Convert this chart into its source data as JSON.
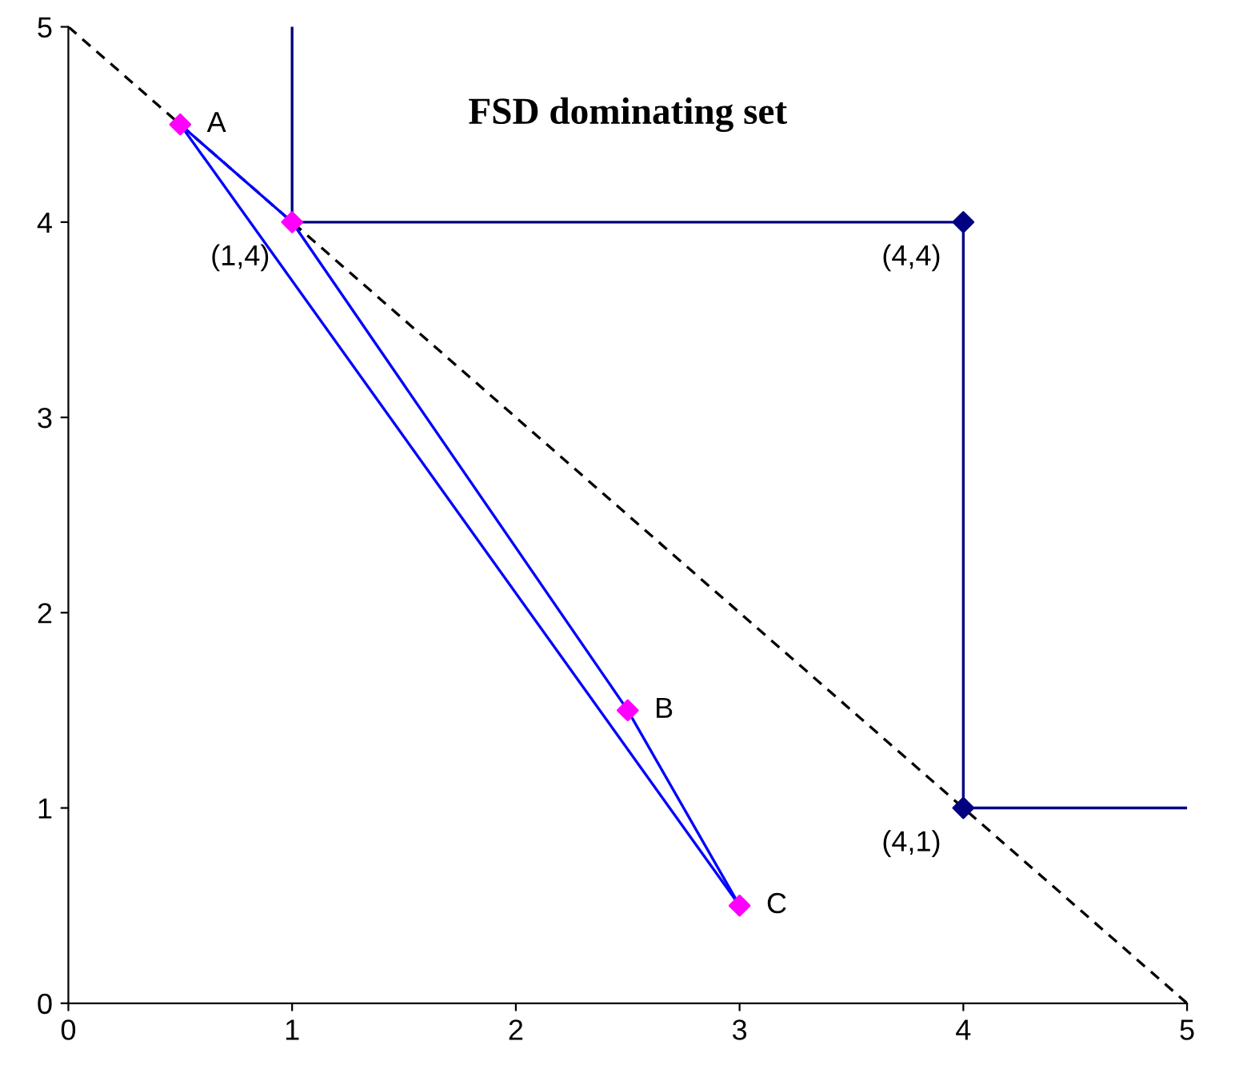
{
  "chart_data": {
    "type": "line",
    "title": "FSD dominating set",
    "xlim": [
      0,
      5
    ],
    "ylim": [
      0,
      5
    ],
    "xticks": [
      0,
      1,
      2,
      3,
      4,
      5
    ],
    "yticks": [
      0,
      1,
      2,
      3,
      4,
      5
    ],
    "grid": false,
    "legend": false,
    "series": [
      {
        "x": [
          0,
          5
        ],
        "values": [
          5,
          0
        ],
        "color": "#000000",
        "line_style": "dashed",
        "marker": "none"
      },
      {
        "x": [
          1,
          1,
          4,
          4,
          5
        ],
        "values": [
          5,
          4,
          4,
          1,
          1
        ],
        "color": "#000080",
        "line_style": "solid",
        "marker": "none"
      },
      {
        "type": "scatter",
        "x": [
          4,
          4
        ],
        "values": [
          4,
          1
        ],
        "color": "#000080",
        "marker": "diamond"
      },
      {
        "x": [
          0.5,
          1,
          2.5,
          3
        ],
        "values": [
          4.5,
          4,
          1.5,
          0.5
        ],
        "color": "#0000ff",
        "line_style": "solid",
        "marker": "none"
      },
      {
        "x": [
          0.5,
          3
        ],
        "values": [
          4.5,
          0.5
        ],
        "color": "#0000ff",
        "line_style": "solid",
        "marker": "none"
      },
      {
        "type": "scatter",
        "x": [
          0.5,
          1,
          2.5,
          3
        ],
        "values": [
          4.5,
          4,
          1.5,
          0.5
        ],
        "color": "#ff00ff",
        "marker": "diamond"
      }
    ],
    "annotations": [
      {
        "text": "A",
        "x": 0.5,
        "y": 4.5
      },
      {
        "text": "B",
        "x": 2.5,
        "y": 1.5
      },
      {
        "text": "C",
        "x": 3,
        "y": 0.5
      },
      {
        "text": "(1,4)",
        "x": 1,
        "y": 4
      },
      {
        "text": "(4,4)",
        "x": 4,
        "y": 4
      },
      {
        "text": "(4,1)",
        "x": 4,
        "y": 1
      }
    ]
  }
}
